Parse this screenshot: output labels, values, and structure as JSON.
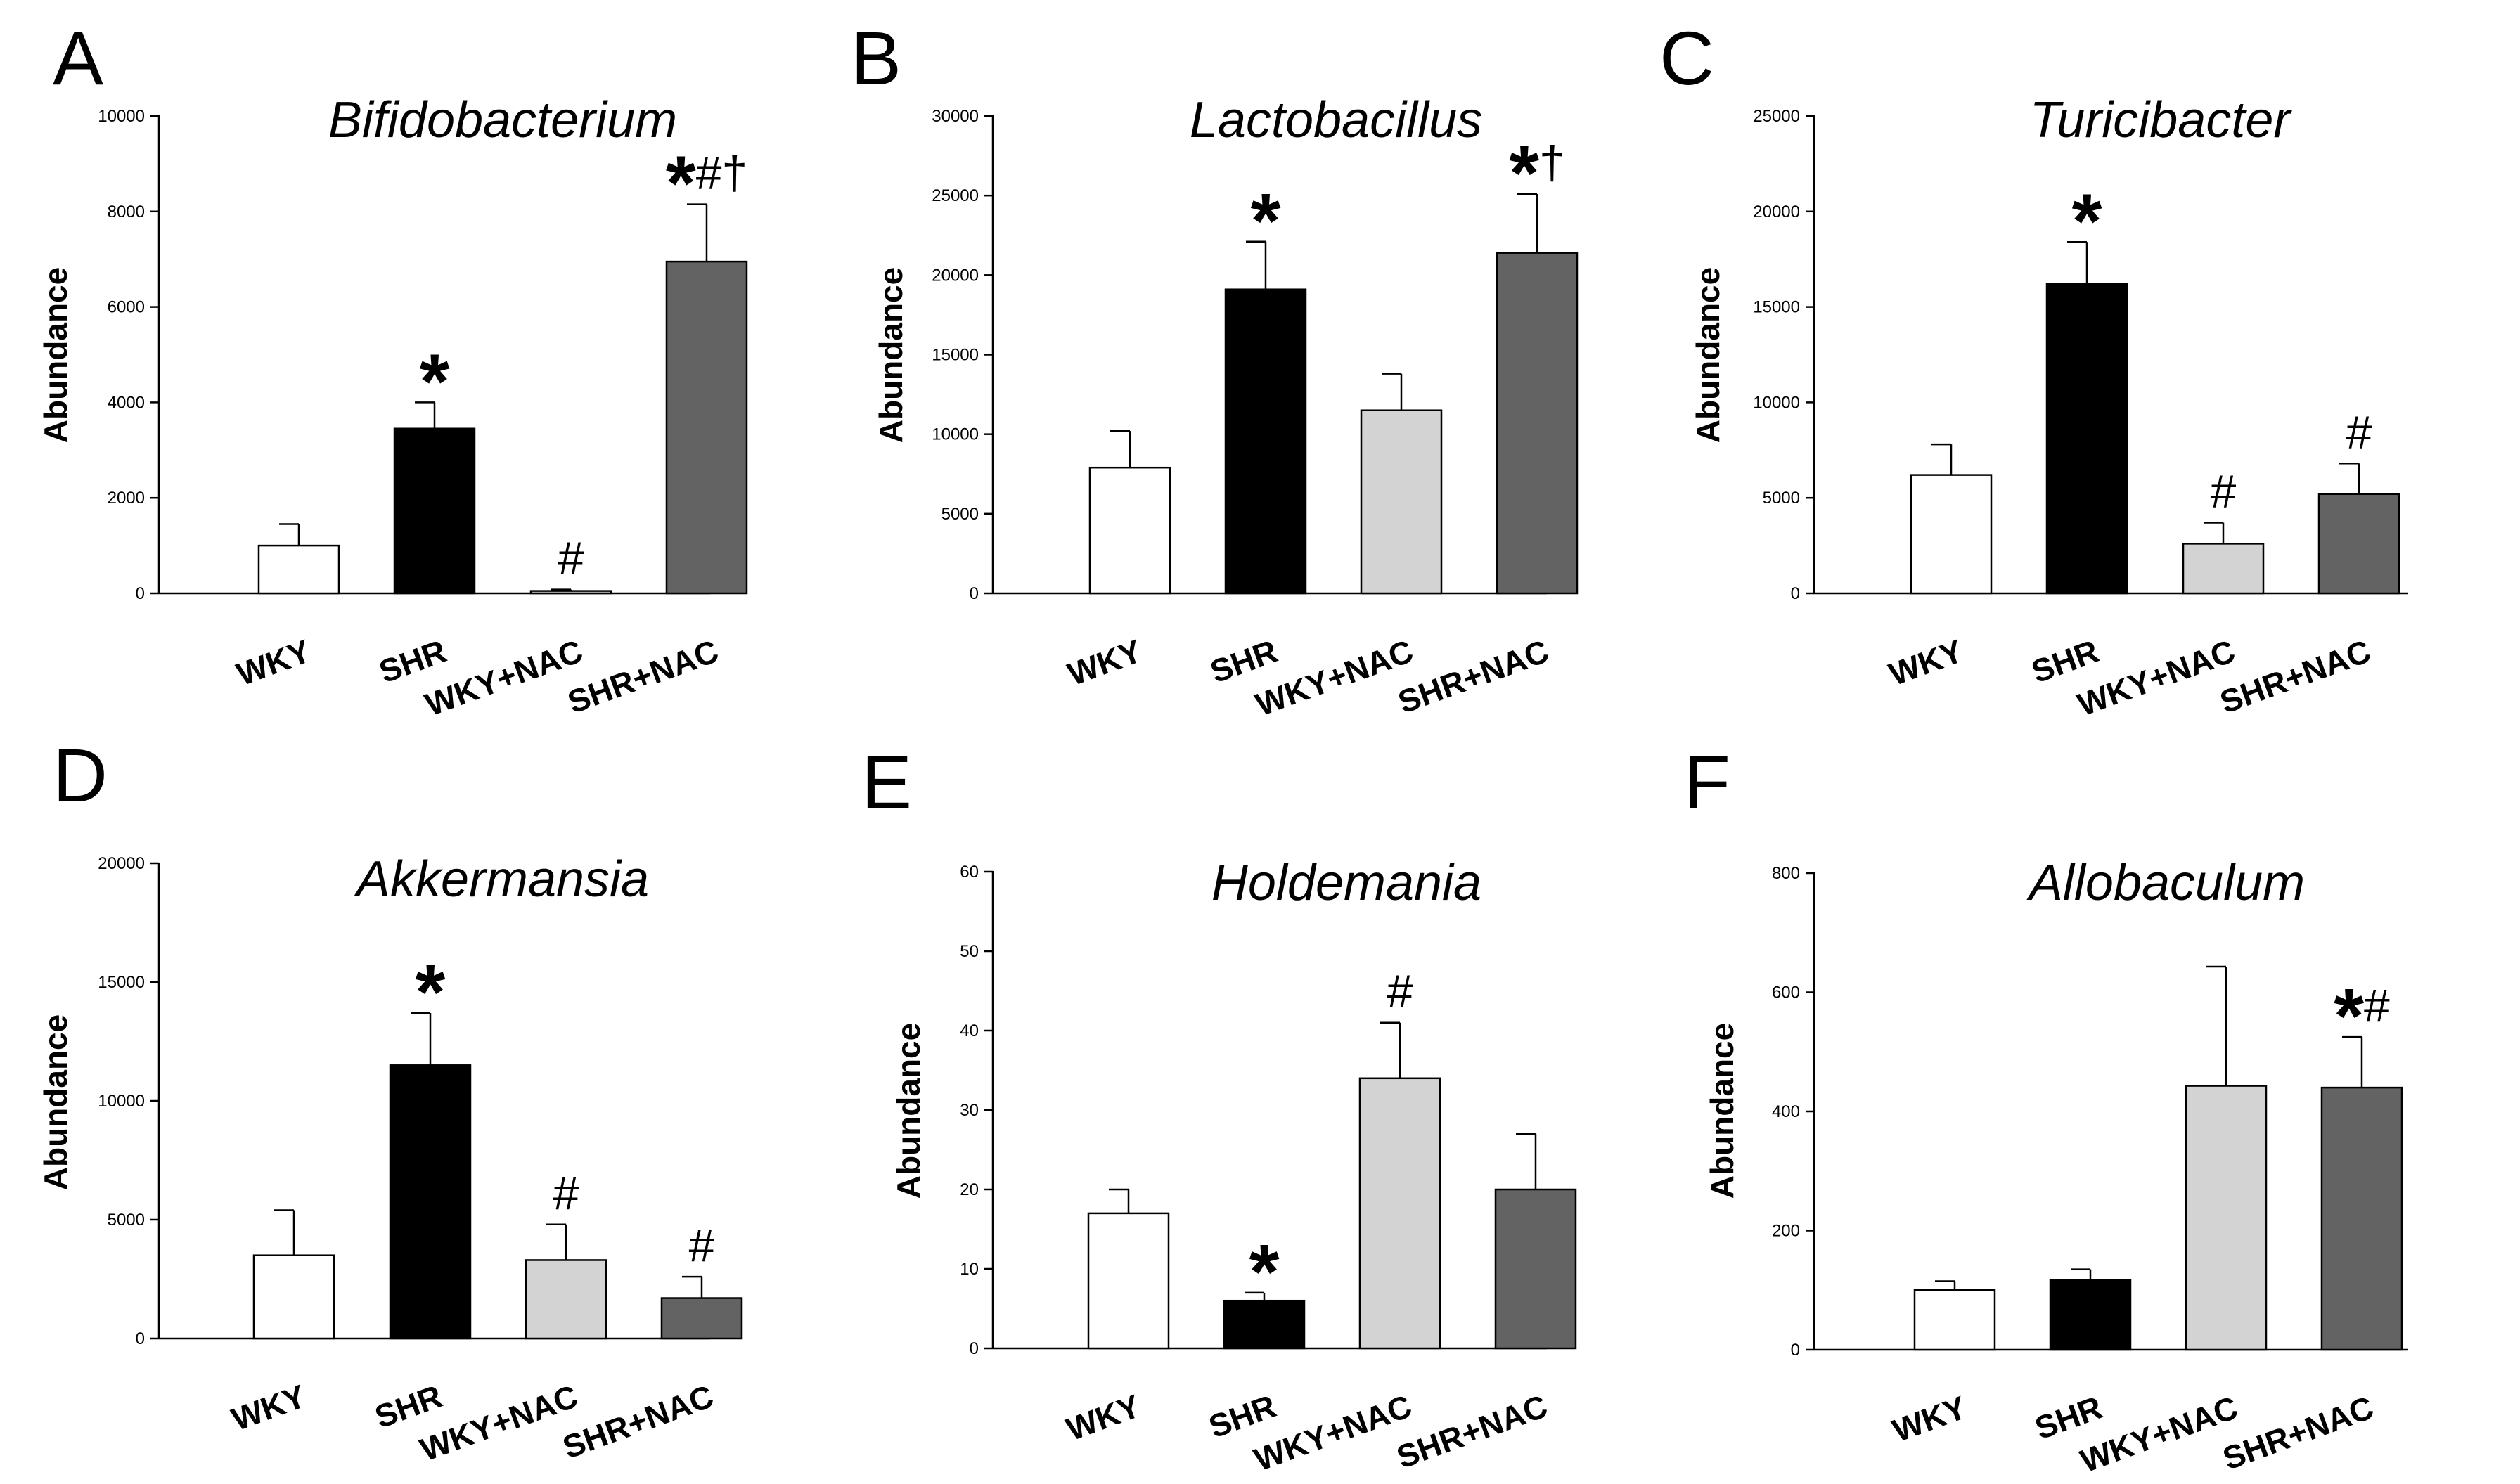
{
  "figure": {
    "colors": {
      "WKY": "#ffffff",
      "SHR": "#000000",
      "WKY+NAC": "#d3d3d3",
      "SHR+NAC": "#636363"
    }
  },
  "chart_data": [
    {
      "type": "bar",
      "panel": "A",
      "title": "Bifidobacterium",
      "ylabel": "Abundance",
      "xlabel": "",
      "categories": [
        "WKY",
        "SHR",
        "WKY+NAC",
        "SHR+NAC"
      ],
      "values": [
        1000,
        3450,
        50,
        6950
      ],
      "errors": [
        450,
        550,
        30,
        1200
      ],
      "ylim": [
        0,
        10000
      ],
      "yticks": [
        0,
        2000,
        4000,
        6000,
        8000,
        10000
      ],
      "ytick_labels": [
        "0",
        "2000",
        "4000",
        "6000",
        "8000",
        "10000"
      ],
      "annotations": [
        "",
        "*",
        "#",
        "*#†"
      ]
    },
    {
      "type": "bar",
      "panel": "B",
      "title": "Lactobacillus",
      "ylabel": "Abundance",
      "xlabel": "",
      "categories": [
        "WKY",
        "SHR",
        "WKY+NAC",
        "SHR+NAC"
      ],
      "values": [
        7900,
        19100,
        11500,
        21400
      ],
      "errors": [
        2300,
        3000,
        2300,
        3700
      ],
      "ylim": [
        0,
        30000
      ],
      "yticks": [
        0,
        5000,
        10000,
        15000,
        20000,
        25000,
        30000
      ],
      "ytick_labels": [
        "0",
        "5000",
        "10000",
        "15000",
        "20000",
        "25000",
        "30000"
      ],
      "annotations": [
        "",
        "*",
        "",
        "*†"
      ]
    },
    {
      "type": "bar",
      "panel": "C",
      "title": "Turicibacter",
      "ylabel": "Abundance",
      "xlabel": "",
      "categories": [
        "WKY",
        "SHR",
        "WKY+NAC",
        "SHR+NAC"
      ],
      "values": [
        6200,
        16200,
        2600,
        5200
      ],
      "errors": [
        1600,
        2200,
        1100,
        1600
      ],
      "ylim": [
        0,
        25000
      ],
      "yticks": [
        0,
        5000,
        10000,
        15000,
        20000,
        25000
      ],
      "ytick_labels": [
        "0",
        "5000",
        "10000",
        "15000",
        "20000",
        "25000"
      ],
      "annotations": [
        "",
        "*",
        "#",
        "#"
      ]
    },
    {
      "type": "bar",
      "panel": "D",
      "title": "Akkermansia",
      "ylabel": "Abundance",
      "xlabel": "",
      "categories": [
        "WKY",
        "SHR",
        "WKY+NAC",
        "SHR+NAC"
      ],
      "values": [
        3500,
        11500,
        3300,
        1700
      ],
      "errors": [
        1900,
        2200,
        1500,
        900
      ],
      "ylim": [
        0,
        20000
      ],
      "yticks": [
        0,
        5000,
        10000,
        15000,
        20000
      ],
      "ytick_labels": [
        "0",
        "5000",
        "10000",
        "15000",
        "20000"
      ],
      "annotations": [
        "",
        "*",
        "#",
        "#"
      ]
    },
    {
      "type": "bar",
      "panel": "E",
      "title": "Holdemania",
      "ylabel": "Abundance",
      "xlabel": "",
      "categories": [
        "WKY",
        "SHR",
        "WKY+NAC",
        "SHR+NAC"
      ],
      "values": [
        17,
        6,
        34,
        20
      ],
      "errors": [
        3,
        1,
        7,
        7
      ],
      "ylim": [
        0,
        60
      ],
      "yticks": [
        0,
        10,
        20,
        30,
        40,
        50,
        60
      ],
      "ytick_labels": [
        "0",
        "10",
        "20",
        "30",
        "40",
        "50",
        "60"
      ],
      "annotations": [
        "",
        "*",
        "#",
        ""
      ]
    },
    {
      "type": "bar",
      "panel": "F",
      "title": "Allobaculum",
      "ylabel": "Abundance",
      "xlabel": "",
      "categories": [
        "WKY",
        "SHR",
        "WKY+NAC",
        "SHR+NAC"
      ],
      "values": [
        100,
        117,
        443,
        440
      ],
      "errors": [
        15,
        18,
        200,
        85
      ],
      "ylim": [
        0,
        800
      ],
      "yticks": [
        0,
        200,
        400,
        600,
        800
      ],
      "ytick_labels": [
        "0",
        "200",
        "400",
        "600",
        "800"
      ],
      "annotations": [
        "",
        "",
        "",
        "*#"
      ]
    }
  ]
}
